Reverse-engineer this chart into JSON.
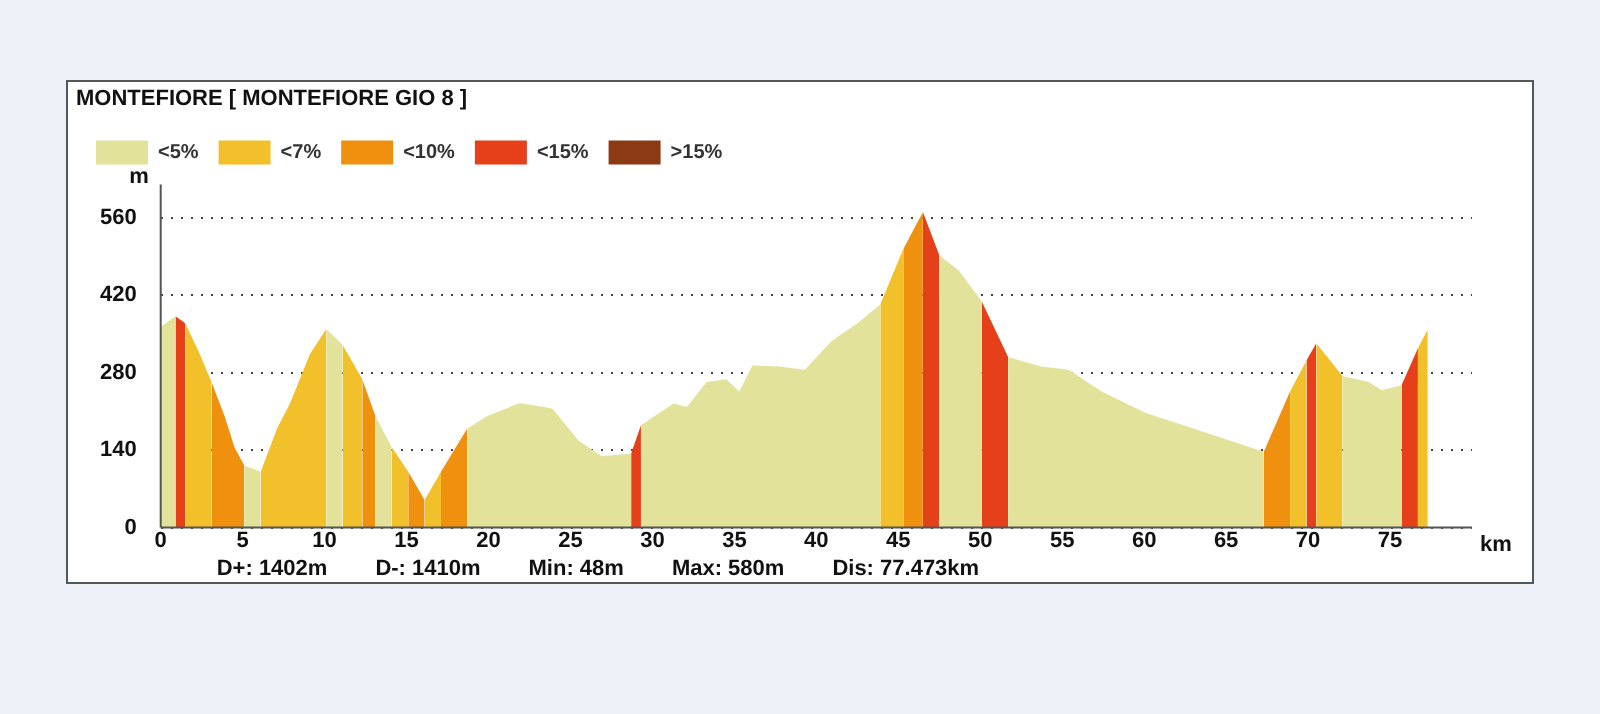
{
  "chart_data": {
    "type": "area",
    "title": "MONTEFIORE [ MONTEFIORE GIO 8 ]",
    "xlabel": "km",
    "ylabel": "m",
    "annotations": [
      "D+: 1402m",
      "D-: 1410m",
      "Min: 48m",
      "Max: 580m",
      "Dis: 77.473km"
    ],
    "xlim": [
      0,
      80
    ],
    "xticks": [
      0,
      5,
      10,
      15,
      20,
      25,
      30,
      35,
      40,
      45,
      50,
      55,
      60,
      65,
      70,
      75
    ],
    "ylim": [
      0,
      620
    ],
    "yticks": [
      0,
      140,
      280,
      420,
      560
    ],
    "grid": "y",
    "legend": "top left",
    "series": [
      {
        "name": "<5%",
        "color": "#e3e29a",
        "x": [
          0,
          0.9,
          1.2,
          5.1,
          6.1,
          6.5,
          10.1,
          11.1,
          11.5,
          13.1,
          14.1,
          14.5,
          18.7,
          19.9,
          21.9,
          23.9,
          25.5,
          26.9,
          28.7,
          29,
          29.3,
          31.3,
          32.1,
          33.3,
          34.5,
          35.3,
          36.1,
          37.7,
          39.3,
          40.9,
          42.5,
          43.9,
          44.5,
          47.5,
          48.7,
          50.1,
          51,
          51.7,
          53.7,
          55.4,
          57.4,
          60.1,
          64.1,
          67.3,
          70,
          72.1,
          73.7,
          74.5,
          75.7
        ],
        "values": [
          363,
          382,
          null,
          112,
          101,
          null,
          359,
          330,
          null,
          201,
          145,
          null,
          179,
          201,
          225,
          215,
          157,
          129,
          134,
          null,
          185,
          224,
          218,
          263,
          268,
          246,
          293,
          291,
          285,
          336,
          369,
          403,
          null,
          492,
          464,
          408,
          null,
          308,
          291,
          285,
          246,
          207,
          168,
          137,
          null,
          274,
          263,
          248,
          257
        ]
      },
      {
        "name": "<7%",
        "color": "#f2c02a",
        "x": [
          1.5,
          2.3,
          3.1,
          4.5,
          6.1,
          7.1,
          7.9,
          9.1,
          10.1,
          10.6,
          11.1,
          12.3,
          13,
          14.1,
          15.1,
          15.5,
          16.1,
          17.1,
          30,
          43.9,
          45.3,
          60,
          68.9,
          69.9,
          70.2,
          70.5,
          72.1,
          74,
          76.7,
          77.3
        ],
        "values": [
          369,
          319,
          263,
          null,
          101,
          179,
          225,
          313,
          359,
          null,
          330,
          268,
          null,
          145,
          101,
          null,
          50,
          101,
          null,
          403,
          503,
          null,
          246,
          302,
          null,
          333,
          274,
          null,
          324,
          358
        ]
      },
      {
        "name": "<10%",
        "color": "#f0900f",
        "x": [
          3.1,
          3.9,
          4.5,
          5.1,
          8,
          12.3,
          13.1,
          14,
          15.1,
          16.1,
          16.5,
          17.1,
          18.7,
          30,
          45.3,
          46.5,
          60,
          67.3,
          68.9
        ],
        "values": [
          263,
          201,
          145,
          112,
          null,
          268,
          201,
          null,
          101,
          50,
          null,
          101,
          179,
          null,
          503,
          570,
          null,
          137,
          246
        ]
      },
      {
        "name": "<15%",
        "color": "#e5401a",
        "x": [
          0.9,
          1.5,
          10,
          28.7,
          29.3,
          40,
          46.5,
          47.5,
          49,
          50.1,
          51.7,
          60,
          69.9,
          70.5,
          73,
          75.7,
          76.7
        ],
        "values": [
          382,
          369,
          null,
          134,
          185,
          null,
          570,
          492,
          null,
          408,
          308,
          null,
          302,
          333,
          null,
          257,
          324
        ]
      },
      {
        "name": ">15%",
        "color": "#8b3a14"
      }
    ]
  }
}
